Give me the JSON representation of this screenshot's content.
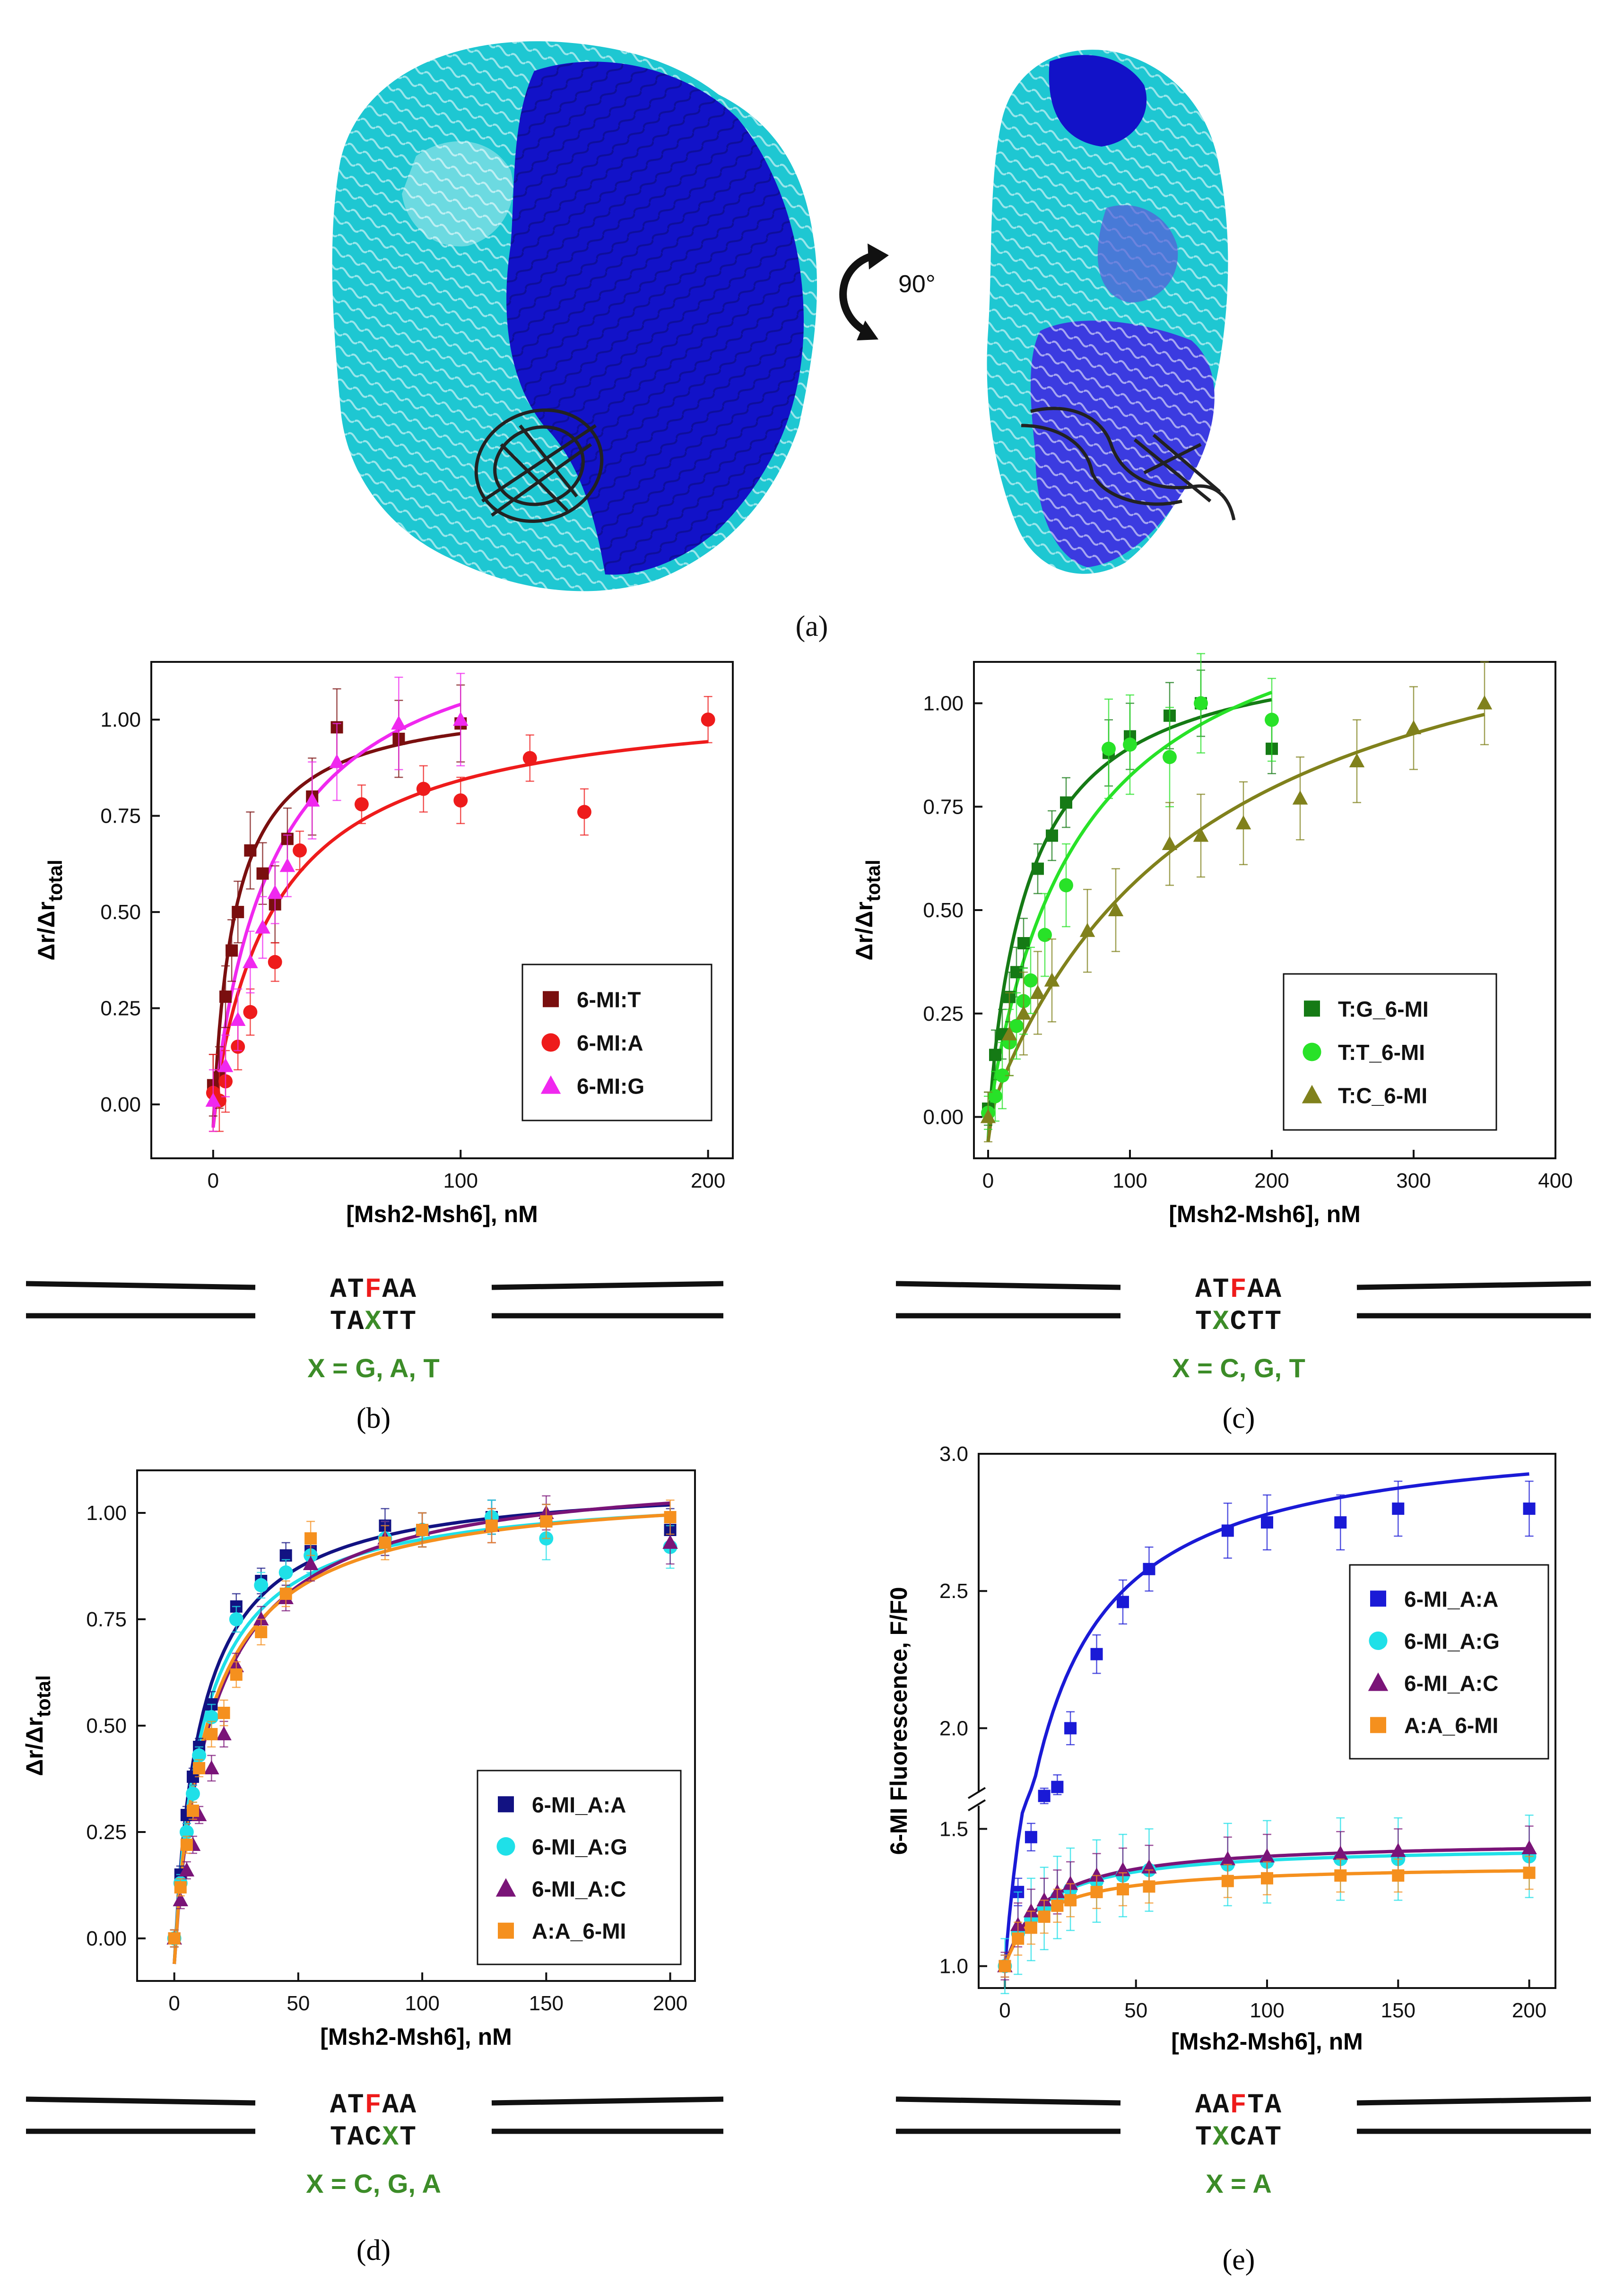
{
  "panel_a": {
    "label": "(a)",
    "rotation_label": "90°",
    "colors": {
      "chain1": "#1ec7d2",
      "chain2": "#1212c8",
      "dna": "#222222"
    }
  },
  "chart_data": [
    {
      "id": "b",
      "type": "scatter",
      "label": "(b)",
      "xlabel": "[Msh2-Msh6], nM",
      "ylabel": "Δr/Δr",
      "ylabel_sub": "total",
      "xlim": [
        -25,
        210
      ],
      "ylim": [
        -0.14,
        1.15
      ],
      "xticks": [
        0,
        100,
        200
      ],
      "yticks": [
        0.0,
        0.25,
        0.5,
        0.75,
        1.0
      ],
      "ytick_labels": [
        "0.00",
        "0.25",
        "0.50",
        "0.75",
        "1.00"
      ],
      "legend_pos": "bottom-right",
      "series": [
        {
          "name": "6-MI:T",
          "marker": "square",
          "color": "#7a0f0f",
          "Kd": 10,
          "Bmax": 1.06,
          "fit_x_max": 100,
          "x": [
            0,
            2.5,
            5,
            7.5,
            10,
            15,
            20,
            25,
            30,
            40,
            50,
            75,
            100
          ],
          "y": [
            0.05,
            0.07,
            0.28,
            0.4,
            0.5,
            0.66,
            0.6,
            0.52,
            0.69,
            0.8,
            0.98,
            0.95,
            0.99
          ],
          "err": [
            0.08,
            0.08,
            0.08,
            0.08,
            0.08,
            0.1,
            0.08,
            0.1,
            0.08,
            0.1,
            0.1,
            0.1,
            0.1
          ]
        },
        {
          "name": "6-MI:A",
          "marker": "circle",
          "color": "#ee1b1b",
          "Kd": 27,
          "Bmax": 1.07,
          "fit_x_max": 200,
          "x": [
            0,
            2.5,
            5,
            10,
            15,
            25,
            35,
            60,
            85,
            100,
            128,
            150,
            200
          ],
          "y": [
            0.03,
            0.01,
            0.06,
            0.15,
            0.24,
            0.37,
            0.66,
            0.78,
            0.82,
            0.79,
            0.9,
            0.76,
            1.0
          ],
          "err": [
            0.1,
            0.08,
            0.08,
            0.06,
            0.06,
            0.05,
            0.05,
            0.05,
            0.06,
            0.06,
            0.06,
            0.06,
            0.06
          ]
        },
        {
          "name": "6-MI:G",
          "marker": "triangle",
          "color": "#f028ef",
          "Kd": 26,
          "Bmax": 1.31,
          "fit_x_max": 100,
          "x": [
            0,
            5,
            10,
            15,
            20,
            25,
            30,
            40,
            50,
            75,
            100
          ],
          "y": [
            0.01,
            0.1,
            0.22,
            0.37,
            0.46,
            0.55,
            0.62,
            0.79,
            0.89,
            0.99,
            1.0
          ],
          "err": [
            0.08,
            0.08,
            0.08,
            0.08,
            0.08,
            0.08,
            0.08,
            0.1,
            0.1,
            0.12,
            0.12
          ]
        }
      ],
      "duplex": {
        "top": "ATFAA",
        "top_highlight_index": 2,
        "bottom": "TAXTT",
        "bottom_highlight_index": 2,
        "caption": "X = G, A, T"
      }
    },
    {
      "id": "c",
      "type": "scatter",
      "label": "(c)",
      "xlabel": "[Msh2-Msh6], nM",
      "ylabel": "Δr/Δr",
      "ylabel_sub": "total",
      "xlim": [
        -10,
        400
      ],
      "ylim": [
        -0.1,
        1.1
      ],
      "xticks": [
        0,
        100,
        200,
        300,
        400
      ],
      "yticks": [
        0.0,
        0.25,
        0.5,
        0.75,
        1.0
      ],
      "ytick_labels": [
        "0.00",
        "0.25",
        "0.50",
        "0.75",
        "1.00"
      ],
      "legend_pos": "bottom-right",
      "series": [
        {
          "name": "T:G_6-MI",
          "marker": "square",
          "color": "#157a15",
          "Kd": 30,
          "Bmax": 1.16,
          "fit_x_max": 200,
          "x": [
            0,
            5,
            10,
            15,
            20,
            25,
            35,
            45,
            55,
            85,
            100,
            128,
            150,
            200
          ],
          "y": [
            0.02,
            0.15,
            0.2,
            0.29,
            0.35,
            0.42,
            0.6,
            0.68,
            0.76,
            0.88,
            0.92,
            0.97,
            1.0,
            0.89
          ],
          "err": [
            0.04,
            0.06,
            0.06,
            0.06,
            0.06,
            0.06,
            0.06,
            0.06,
            0.06,
            0.08,
            0.08,
            0.08,
            0.08,
            0.06
          ]
        },
        {
          "name": "T:T_6-MI",
          "marker": "circle",
          "color": "#28e228",
          "Kd": 65,
          "Bmax": 1.36,
          "fit_x_max": 200,
          "x": [
            0,
            5,
            10,
            15,
            20,
            25,
            30,
            40,
            55,
            85,
            100,
            128,
            150,
            200
          ],
          "y": [
            0.01,
            0.05,
            0.1,
            0.18,
            0.22,
            0.28,
            0.33,
            0.44,
            0.56,
            0.89,
            0.9,
            0.87,
            1.0,
            0.96
          ],
          "err": [
            0.04,
            0.06,
            0.08,
            0.08,
            0.08,
            0.08,
            0.08,
            0.1,
            0.1,
            0.12,
            0.12,
            0.12,
            0.12,
            0.1
          ]
        },
        {
          "name": "T:C_6-MI",
          "marker": "triangle",
          "color": "#80811c",
          "Kd": 150,
          "Bmax": 1.39,
          "fit_x_max": 350,
          "x": [
            0,
            15,
            25,
            35,
            45,
            70,
            90,
            128,
            150,
            180,
            220,
            260,
            300,
            350
          ],
          "y": [
            0.0,
            0.2,
            0.25,
            0.3,
            0.33,
            0.45,
            0.5,
            0.66,
            0.68,
            0.71,
            0.77,
            0.86,
            0.94,
            1.0
          ],
          "err": [
            0.06,
            0.1,
            0.1,
            0.1,
            0.1,
            0.1,
            0.1,
            0.1,
            0.1,
            0.1,
            0.1,
            0.1,
            0.1,
            0.1
          ]
        }
      ],
      "duplex": {
        "top": "ATFAA",
        "top_highlight_index": 2,
        "bottom": "TXCTT",
        "bottom_highlight_index": 1,
        "caption": "X = C, G, T"
      }
    },
    {
      "id": "d",
      "type": "scatter",
      "label": "(d)",
      "xlabel": "[Msh2-Msh6], nM",
      "ylabel": "Δr/Δr",
      "ylabel_sub": "total",
      "xlim": [
        -15,
        210
      ],
      "ylim": [
        -0.1,
        1.1
      ],
      "xticks": [
        0,
        50,
        100,
        150,
        200
      ],
      "yticks": [
        0.0,
        0.25,
        0.5,
        0.75,
        1.0
      ],
      "ytick_labels": [
        "0.00",
        "0.25",
        "0.50",
        "0.75",
        "1.00"
      ],
      "legend_pos": "bottom-right",
      "series": [
        {
          "name": "6-MI_A:A",
          "marker": "square",
          "color": "#121282",
          "Kd": 12,
          "Bmax": 1.08,
          "fit_x_max": 200,
          "x": [
            0,
            2.5,
            5,
            7.5,
            10,
            15,
            25,
            35,
            45,
            55,
            85,
            100,
            128,
            150,
            200
          ],
          "y": [
            0.0,
            0.15,
            0.29,
            0.38,
            0.45,
            0.55,
            0.78,
            0.84,
            0.9,
            0.91,
            0.97,
            0.96,
            0.99,
            0.98,
            0.96
          ],
          "err": [
            0.02,
            0.02,
            0.02,
            0.02,
            0.02,
            0.03,
            0.03,
            0.03,
            0.03,
            0.04,
            0.04,
            0.04,
            0.04,
            0.04,
            0.05
          ]
        },
        {
          "name": "6-MI_A:G",
          "marker": "circle",
          "color": "#1fe0e8",
          "Kd": 13,
          "Bmax": 1.06,
          "fit_x_max": 200,
          "x": [
            0,
            2.5,
            5,
            7.5,
            10,
            15,
            25,
            35,
            45,
            55,
            85,
            100,
            128,
            150,
            200
          ],
          "y": [
            0.0,
            0.13,
            0.25,
            0.34,
            0.43,
            0.52,
            0.75,
            0.83,
            0.86,
            0.9,
            0.94,
            0.96,
            0.99,
            0.94,
            0.92
          ],
          "err": [
            0.02,
            0.02,
            0.02,
            0.02,
            0.02,
            0.03,
            0.03,
            0.03,
            0.03,
            0.04,
            0.04,
            0.04,
            0.04,
            0.05,
            0.05
          ]
        },
        {
          "name": "6-MI_A:C",
          "marker": "triangle",
          "color": "#7a1478",
          "Kd": 17,
          "Bmax": 1.11,
          "fit_x_max": 200,
          "x": [
            0,
            2.5,
            5,
            7.5,
            10,
            15,
            20,
            25,
            35,
            45,
            55,
            85,
            100,
            128,
            150,
            200
          ],
          "y": [
            0.0,
            0.09,
            0.16,
            0.22,
            0.29,
            0.4,
            0.48,
            0.64,
            0.75,
            0.8,
            0.88,
            0.94,
            0.96,
            0.97,
            1.0,
            0.93
          ],
          "err": [
            0.02,
            0.02,
            0.02,
            0.02,
            0.02,
            0.03,
            0.03,
            0.03,
            0.03,
            0.03,
            0.04,
            0.04,
            0.04,
            0.04,
            0.04,
            0.05
          ]
        },
        {
          "name": "A:A_6-MI",
          "marker": "square",
          "color": "#f5901e",
          "Kd": 15,
          "Bmax": 1.07,
          "fit_x_max": 200,
          "x": [
            0,
            2.5,
            5,
            7.5,
            10,
            15,
            20,
            25,
            35,
            45,
            55,
            85,
            100,
            128,
            150,
            200
          ],
          "y": [
            0.0,
            0.12,
            0.22,
            0.3,
            0.4,
            0.48,
            0.53,
            0.62,
            0.72,
            0.81,
            0.94,
            0.93,
            0.96,
            0.97,
            0.98,
            0.99
          ],
          "err": [
            0.02,
            0.02,
            0.02,
            0.02,
            0.02,
            0.03,
            0.03,
            0.03,
            0.03,
            0.03,
            0.04,
            0.04,
            0.04,
            0.04,
            0.04,
            0.04
          ]
        }
      ],
      "duplex": {
        "top": "ATFAA",
        "top_highlight_index": 2,
        "bottom": "TACXT",
        "bottom_highlight_index": 3,
        "caption": "X = C, G, A"
      }
    },
    {
      "id": "e",
      "type": "scatter",
      "label": "(e)",
      "xlabel": "[Msh2-Msh6], nM",
      "ylabel": "6-MI Fluorescence, F/F0",
      "xlim": [
        -10,
        210
      ],
      "ylim": [
        0.92,
        3.0
      ],
      "axis_break": [
        1.55,
        1.8
      ],
      "xticks": [
        0,
        50,
        100,
        150,
        200
      ],
      "yticks": [
        1.0,
        1.5,
        2.0,
        2.5,
        3.0
      ],
      "ytick_labels": [
        "1.0",
        "1.5",
        "2.0",
        "2.5",
        "3.0"
      ],
      "legend_pos": "top-right",
      "series": [
        {
          "name": "6-MI_A:A",
          "marker": "square",
          "color": "#1a1ad6",
          "Kd": 18,
          "Bmax": 2.1,
          "fit_x_max": 200,
          "x": [
            0,
            5,
            10,
            15,
            20,
            25,
            35,
            45,
            55,
            85,
            100,
            128,
            150,
            200
          ],
          "y": [
            1.0,
            1.27,
            1.47,
            1.7,
            1.77,
            2.0,
            2.27,
            2.46,
            2.58,
            2.72,
            2.75,
            2.75,
            2.8,
            2.8
          ],
          "err": [
            0.04,
            0.05,
            0.05,
            0.06,
            0.06,
            0.06,
            0.07,
            0.08,
            0.08,
            0.1,
            0.1,
            0.1,
            0.1,
            0.1
          ]
        },
        {
          "name": "6-MI_A:G",
          "marker": "circle",
          "color": "#1fe0e8",
          "Kd": 14,
          "Bmax": 0.44,
          "fit_x_max": 200,
          "x": [
            0,
            5,
            10,
            15,
            20,
            25,
            35,
            45,
            55,
            85,
            100,
            128,
            150,
            200
          ],
          "y": [
            1.0,
            1.12,
            1.17,
            1.21,
            1.25,
            1.28,
            1.31,
            1.33,
            1.35,
            1.37,
            1.38,
            1.39,
            1.39,
            1.4
          ],
          "err": [
            0.1,
            0.15,
            0.15,
            0.15,
            0.15,
            0.15,
            0.15,
            0.15,
            0.15,
            0.15,
            0.15,
            0.15,
            0.15,
            0.15
          ]
        },
        {
          "name": "6-MI_A:C",
          "marker": "triangle",
          "color": "#7a1478",
          "Kd": 15,
          "Bmax": 0.46,
          "fit_x_max": 200,
          "x": [
            0,
            5,
            10,
            15,
            20,
            25,
            35,
            45,
            55,
            85,
            100,
            128,
            150,
            200
          ],
          "y": [
            1.0,
            1.15,
            1.2,
            1.24,
            1.27,
            1.3,
            1.33,
            1.35,
            1.36,
            1.39,
            1.4,
            1.41,
            1.42,
            1.43
          ],
          "err": [
            0.05,
            0.08,
            0.08,
            0.08,
            0.08,
            0.08,
            0.08,
            0.08,
            0.08,
            0.08,
            0.08,
            0.08,
            0.08,
            0.08
          ]
        },
        {
          "name": "A:A_6-MI",
          "marker": "square",
          "color": "#f5901e",
          "Kd": 13,
          "Bmax": 0.37,
          "fit_x_max": 200,
          "x": [
            0,
            5,
            10,
            15,
            20,
            25,
            35,
            45,
            55,
            85,
            100,
            128,
            150,
            200
          ],
          "y": [
            1.0,
            1.1,
            1.14,
            1.18,
            1.22,
            1.24,
            1.27,
            1.28,
            1.29,
            1.31,
            1.32,
            1.33,
            1.33,
            1.34
          ],
          "err": [
            0.04,
            0.06,
            0.06,
            0.06,
            0.06,
            0.06,
            0.06,
            0.06,
            0.06,
            0.06,
            0.06,
            0.06,
            0.06,
            0.06
          ]
        }
      ],
      "duplex": {
        "top": "AAFTA",
        "top_highlight_index": 2,
        "bottom": "TXCAT",
        "bottom_highlight_index": 1,
        "caption": "X = A"
      }
    }
  ]
}
